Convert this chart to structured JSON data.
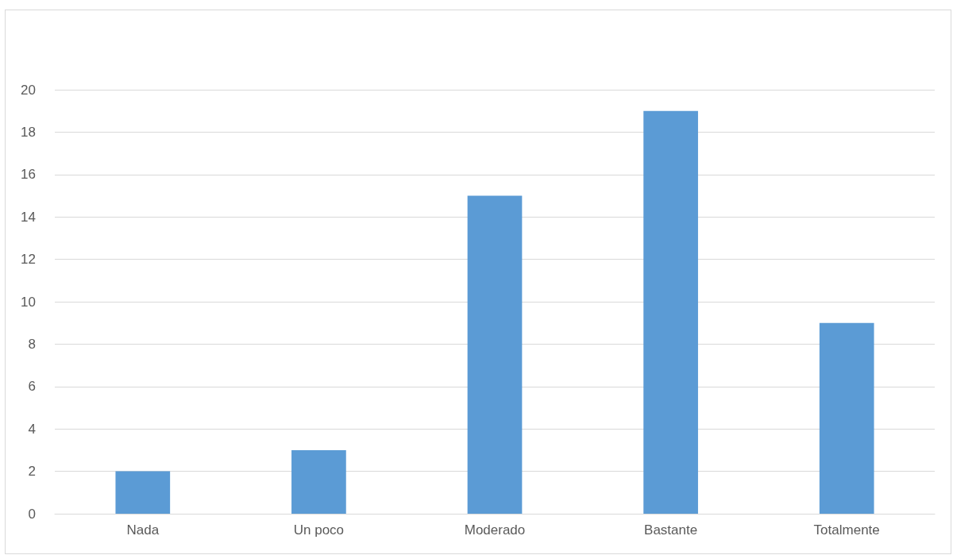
{
  "chart_data": {
    "type": "bar",
    "categories": [
      "Nada",
      "Un poco",
      "Moderado",
      "Bastante",
      "Totalmente"
    ],
    "values": [
      2,
      3,
      15,
      19,
      9
    ],
    "color": "#5b9bd5",
    "ylim": [
      0,
      20
    ],
    "yticks": [
      0,
      2,
      4,
      6,
      8,
      10,
      12,
      14,
      16,
      18,
      20
    ],
    "grid": "y"
  }
}
